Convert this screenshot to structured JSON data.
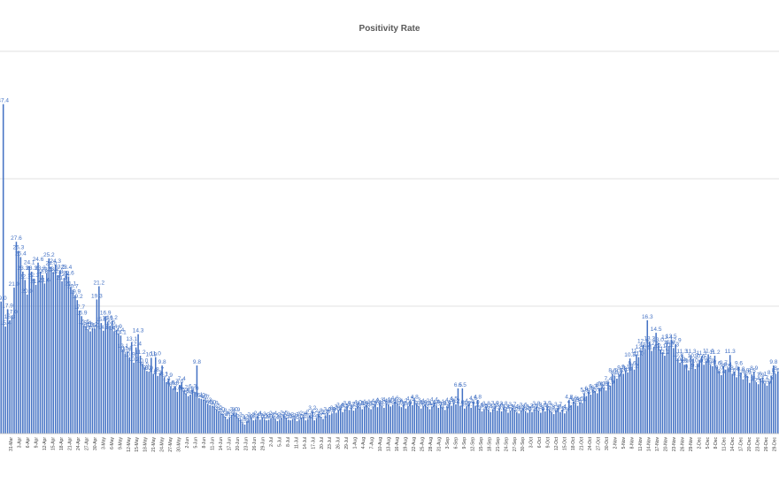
{
  "chart_data": {
    "type": "bar",
    "title": "Positivity Rate",
    "xlabel": "",
    "ylabel": "",
    "ylim": [
      0,
      55
    ],
    "grid": true,
    "legend": "none",
    "bar_color": "#4472C4",
    "tick_labels": [
      "31-Mar",
      "3-Apr",
      "6-Apr",
      "9-Apr",
      "12-Apr",
      "15-Apr",
      "18-Apr",
      "21-Apr",
      "24-Apr",
      "27-Apr",
      "30-Apr",
      "3-May",
      "6-May",
      "9-May",
      "12-May",
      "15-May",
      "18-May",
      "21-May",
      "24-May",
      "27-May",
      "30-May",
      "2-Jun",
      "5-Jun",
      "8-Jun",
      "11-Jun",
      "14-Jun",
      "17-Jun",
      "20-Jun",
      "23-Jun",
      "26-Jun",
      "29-Jun",
      "2-Jul",
      "5-Jul",
      "8-Jul",
      "11-Jul",
      "14-Jul",
      "17-Jul",
      "20-Jul",
      "23-Jul",
      "26-Jul",
      "29-Jul",
      "1-Aug",
      "4-Aug",
      "7-Aug",
      "10-Aug",
      "13-Aug",
      "16-Aug",
      "19-Aug",
      "22-Aug",
      "25-Aug",
      "28-Aug",
      "31-Aug",
      "3-Sep",
      "6-Sep",
      "9-Sep",
      "12-Sep",
      "15-Sep",
      "18-Sep",
      "21-Sep",
      "24-Sep",
      "27-Sep",
      "30-Sep",
      "3-Oct",
      "6-Oct",
      "9-Oct",
      "12-Oct",
      "15-Oct",
      "18-Oct",
      "21-Oct",
      "24-Oct",
      "27-Oct",
      "30-Oct",
      "2-Nov",
      "5-Nov",
      "8-Nov",
      "11-Nov",
      "14-Nov",
      "17-Nov",
      "20-Nov",
      "23-Nov",
      "26-Nov",
      "29-Nov",
      "2-Dec",
      "5-Dec",
      "8-Dec",
      "11-Dec",
      "14-Dec",
      "17-Dec",
      "20-Dec",
      "23-Dec",
      "26-Dec",
      "29-Dec"
    ],
    "values": [
      19.0,
      47.4,
      15.4,
      17.9,
      16.3,
      17.0,
      21.0,
      27.6,
      26.3,
      25.4,
      23.3,
      22.1,
      20.0,
      24.1,
      23.3,
      22.3,
      21.4,
      24.6,
      23.3,
      22.8,
      21.6,
      23.1,
      25.2,
      24.0,
      23.2,
      24.3,
      22.8,
      23.5,
      21.9,
      22.4,
      23.4,
      22.6,
      21.1,
      20.7,
      19.9,
      19.2,
      17.7,
      16.9,
      15.6,
      15.4,
      15.0,
      14.7,
      15.2,
      15.1,
      19.3,
      21.2,
      15.9,
      14.8,
      16.9,
      16.1,
      15.5,
      16.2,
      14.7,
      14.9,
      14.4,
      14.1,
      12.1,
      11.5,
      11.8,
      10.9,
      13.1,
      10.2,
      12.4,
      14.3,
      11.2,
      10.0,
      9.5,
      9.0,
      8.9,
      10.9,
      8.6,
      11.0,
      8.3,
      8.7,
      9.8,
      8.1,
      7.4,
      7.9,
      6.8,
      6.5,
      6.8,
      6.0,
      7.0,
      7.4,
      6.2,
      5.8,
      5.4,
      5.6,
      6.3,
      6.0,
      9.8,
      5.1,
      5.0,
      4.9,
      4.7,
      4.3,
      4.1,
      4.0,
      3.9,
      3.5,
      3.2,
      3.0,
      2.8,
      2.4,
      2.1,
      2.3,
      2.7,
      3.0,
      2.9,
      2.2,
      2.0,
      1.5,
      1.3,
      1.8,
      2.0,
      2.2,
      1.9,
      2.1,
      2.4,
      2.0,
      2.3,
      2.1,
      1.9,
      2.0,
      2.2,
      2.4,
      2.1,
      1.8,
      2.0,
      2.2,
      2.5,
      2.3,
      2.0,
      1.9,
      2.1,
      2.2,
      1.8,
      2.0,
      2.3,
      2.4,
      1.9,
      2.1,
      2.6,
      3.2,
      1.9,
      2.2,
      2.8,
      2.4,
      2.1,
      2.6,
      3.0,
      2.7,
      2.9,
      3.2,
      3.0,
      3.4,
      3.6,
      3.1,
      3.5,
      3.9,
      3.4,
      3.7,
      3.3,
      3.6,
      4.0,
      3.8,
      3.5,
      3.9,
      4.1,
      3.7,
      3.5,
      3.9,
      4.2,
      3.8,
      4.3,
      4.0,
      3.7,
      4.4,
      4.2,
      3.9,
      4.1,
      4.6,
      4.3,
      4.0,
      3.8,
      4.2,
      3.6,
      3.9,
      4.5,
      4.1,
      4.8,
      4.3,
      3.9,
      3.6,
      4.0,
      4.2,
      3.8,
      3.5,
      3.9,
      4.4,
      4.0,
      3.7,
      4.1,
      3.8,
      3.4,
      3.9,
      4.3,
      4.0,
      4.5,
      4.2,
      6.5,
      4.0,
      6.5,
      3.6,
      3.9,
      4.2,
      3.7,
      4.6,
      4.0,
      4.8,
      3.6,
      3.2,
      3.5,
      3.8,
      3.4,
      3.1,
      3.5,
      3.9,
      3.3,
      3.6,
      3.2,
      3.8,
      3.4,
      3.0,
      3.3,
      3.7,
      3.4,
      3.1,
      2.9,
      3.3,
      3.6,
      3.2,
      3.0,
      3.4,
      3.1,
      3.5,
      3.8,
      3.3,
      3.0,
      3.6,
      3.2,
      3.9,
      3.5,
      3.1,
      2.8,
      3.3,
      3.7,
      3.1,
      3.4,
      2.9,
      3.2,
      4.8,
      4.1,
      4.6,
      4.3,
      4.0,
      4.5,
      4.4,
      5.8,
      5.4,
      6.0,
      5.6,
      6.3,
      6.1,
      5.8,
      6.5,
      6.7,
      6.6,
      6.2,
      7.4,
      6.9,
      8.6,
      8.3,
      7.9,
      8.5,
      9.0,
      8.6,
      9.1,
      8.8,
      10.8,
      9.6,
      9.2,
      11.4,
      11.0,
      12.0,
      12.8,
      12.2,
      16.3,
      13.2,
      11.9,
      12.5,
      14.5,
      13.0,
      12.1,
      11.7,
      11.2,
      13.4,
      12.6,
      13.5,
      12.3,
      12.9,
      10.8,
      10.2,
      11.3,
      9.9,
      10.0,
      9.1,
      11.3,
      10.7,
      9.3,
      10.0,
      10.6,
      11.1,
      9.9,
      10.4,
      11.4,
      9.9,
      9.7,
      11.2,
      9.6,
      9.0,
      8.4,
      9.7,
      9.2,
      9.4,
      11.3,
      8.6,
      8.9,
      8.1,
      9.6,
      8.8,
      7.8,
      8.5,
      8.3,
      7.3,
      8.5,
      8.9,
      7.4,
      7.1,
      7.9,
      8.1,
      7.2,
      6.9,
      7.5,
      8.3,
      9.8,
      8.6,
      8.9
    ],
    "data_labels": [
      "19.0",
      "47.4",
      "15.4",
      "17.9",
      "16.3",
      "17.0",
      "21.0",
      "27.6",
      "26.3",
      "25.4",
      "23.3",
      "22.1",
      "20.0",
      "24.1",
      "23.3",
      "22.3",
      "21.4",
      "24.6",
      "23.3",
      "22.8",
      "21.6",
      "23.1",
      "25.2",
      "24.0",
      "23.2",
      "24.3",
      "22.8",
      "23.5",
      "21.9",
      "22.4",
      "23.4",
      "22.6",
      "21.1",
      "20.7",
      "19.9",
      "19.2",
      "17.7",
      "16.9",
      "15.6",
      "15.4",
      "15.0",
      "14.7",
      "15.2",
      "15.1",
      "19.3",
      "21.2",
      "15.9",
      "14.8",
      "16.9",
      "16.1",
      "15.5",
      "16.2",
      "14.7",
      "14.9",
      "14.4",
      "14.1",
      "12.1",
      "11.5",
      "11.8",
      "10.9",
      "13.1",
      "10.2",
      "12.4",
      "14.3",
      "11.2",
      "10.0",
      "9.5",
      "9.0",
      "8.9",
      "10.9",
      "8.6",
      "11.0",
      "8.3",
      "8.7",
      "9.8",
      "8.1",
      "7.4",
      "7.9",
      "6.8",
      "6.5",
      "6.8",
      "6.0",
      "7.0",
      "7.4",
      "6.2",
      "5.8",
      "5.4",
      "5.6",
      "6.3",
      "6.0",
      "9.8",
      "5.1",
      "5.0",
      "4.9",
      "4.7",
      "4.3",
      "4.1",
      "4.0",
      "3.9",
      "3.5",
      "3.2",
      "3.0",
      "2.8",
      "2.4",
      "2.1",
      "2.3",
      "2.7",
      "3.0",
      "2.9",
      "2.2",
      "2.0",
      "1.5",
      "1.3",
      "1.8",
      "2.0",
      "2.2",
      "1.9",
      "2.1",
      "2.4",
      "2.0",
      "2.3",
      "2.1",
      "1.9",
      "2.0",
      "2.2",
      "2.4",
      "2.1",
      "1.8",
      "2.0",
      "2.2",
      "2.5",
      "2.3",
      "2.0",
      "1.9",
      "2.1",
      "2.2",
      "1.8",
      "2.0",
      "2.3",
      "2.4",
      "1.9",
      "2.1",
      "2.6",
      "3.2",
      "1.9",
      "2.2",
      "2.8",
      "2.4",
      "2.1",
      "2.6",
      "3.0",
      "2.7",
      "2.9",
      "3.2",
      "3.0",
      "3.4",
      "3.6",
      "3.1",
      "3.5",
      "3.9",
      "3.4",
      "3.7",
      "3.3",
      "3.6",
      "4.0",
      "3.8",
      "3.5",
      "3.9",
      "4.1",
      "3.7",
      "3.5",
      "3.9",
      "4.2",
      "3.8",
      "4.3",
      "4.0",
      "3.7",
      "4.4",
      "4.2",
      "3.9",
      "4.1",
      "4.6",
      "4.3",
      "4.0",
      "3.8",
      "4.2",
      "3.6",
      "3.9",
      "4.5",
      "4.1",
      "4.8",
      "4.3",
      "3.9",
      "3.6",
      "4.0",
      "4.2",
      "3.8",
      "3.5",
      "3.9",
      "4.4",
      "4.0",
      "3.7",
      "4.1",
      "3.8",
      "3.4",
      "3.9",
      "4.3",
      "4.0",
      "4.5",
      "4.2",
      "6.5",
      "4.0",
      "6.5",
      "3.6",
      "3.9",
      "4.2",
      "3.7",
      "4.6",
      "4.0",
      "4.8",
      "3.6",
      "3.2",
      "3.5",
      "3.8",
      "3.4",
      "3.1",
      "3.5",
      "3.9",
      "3.3",
      "3.6",
      "3.2",
      "3.8",
      "3.4",
      "3.0",
      "3.3",
      "3.7",
      "3.4",
      "3.1",
      "2.9",
      "3.3",
      "3.6",
      "3.2",
      "3.0",
      "3.4",
      "3.1",
      "3.5",
      "3.8",
      "3.3",
      "3.0",
      "3.6",
      "3.2",
      "3.9",
      "3.5",
      "3.1",
      "2.8",
      "3.3",
      "3.7",
      "3.1",
      "3.4",
      "2.9",
      "3.2",
      "4.8",
      "4.1",
      "4.6",
      "4.3",
      "4.0",
      "4.5",
      "4.4",
      "5.8",
      "5.4",
      "6.0",
      "5.6",
      "6.3",
      "6.1",
      "5.8",
      "6.5",
      "6.7",
      "6.6",
      "6.2",
      "7.4",
      "6.9",
      "8.6",
      "8.3",
      "7.9",
      "8.5",
      "9.0",
      "8.6",
      "9.1",
      "8.8",
      "10.8",
      "9.6",
      "9.2",
      "11.4",
      "11.0",
      "12.0",
      "12.8",
      "12.2",
      "16.3",
      "13.2",
      "11.9",
      "12.5",
      "14.5",
      "13.0",
      "12.1",
      "11.7",
      "11.2",
      "13.4",
      "12.6",
      "13.5",
      "12.3",
      "12.9",
      "10.8",
      "10.2",
      "11.3",
      "9.9",
      "10.0",
      "9.1",
      "11.3",
      "10.7",
      "9.3",
      "10.0",
      "10.6",
      "11.1",
      "9.9",
      "10.4",
      "11.4",
      "9.9",
      "9.7",
      "11.2",
      "9.6",
      "9.0",
      "8.4",
      "9.7",
      "9.2",
      "9.4",
      "11.3",
      "8.6",
      "8.9",
      "8.1",
      "9.6",
      "8.8",
      "7.8",
      "8.5",
      "8.3",
      "7.3",
      "8.5",
      "8.9",
      "7.4",
      "7.1",
      "7.9",
      "8.1",
      "7.2",
      "6.9",
      "7.5",
      "8.3",
      "9.8",
      "8.6",
      "8.9"
    ]
  }
}
